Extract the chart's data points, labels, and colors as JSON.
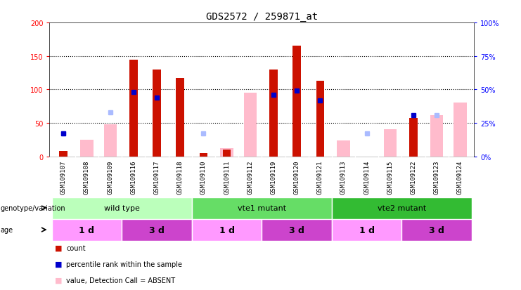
{
  "title": "GDS2572 / 259871_at",
  "samples": [
    "GSM109107",
    "GSM109108",
    "GSM109109",
    "GSM109116",
    "GSM109117",
    "GSM109118",
    "GSM109110",
    "GSM109111",
    "GSM109112",
    "GSM109119",
    "GSM109120",
    "GSM109121",
    "GSM109113",
    "GSM109114",
    "GSM109115",
    "GSM109122",
    "GSM109123",
    "GSM109124"
  ],
  "count": [
    8,
    0,
    0,
    144,
    130,
    117,
    5,
    10,
    0,
    130,
    165,
    113,
    0,
    0,
    0,
    57,
    0,
    0
  ],
  "percentile_rank": [
    17,
    0,
    0,
    48,
    44,
    0,
    0,
    0,
    0,
    46,
    49,
    42,
    0,
    0,
    0,
    31,
    0,
    0
  ],
  "value_absent": [
    0,
    25,
    48,
    0,
    0,
    0,
    0,
    12,
    95,
    0,
    0,
    0,
    24,
    0,
    40,
    0,
    62,
    80
  ],
  "rank_absent": [
    17,
    0,
    33,
    0,
    0,
    0,
    17,
    0,
    0,
    0,
    0,
    0,
    0,
    17,
    0,
    0,
    31,
    0
  ],
  "ylim_left": [
    0,
    200
  ],
  "ylim_right": [
    0,
    100
  ],
  "yticks_left": [
    0,
    50,
    100,
    150,
    200
  ],
  "yticks_right": [
    0,
    25,
    50,
    75,
    100
  ],
  "ytick_labels_left": [
    "0",
    "50",
    "100",
    "150",
    "200"
  ],
  "ytick_labels_right": [
    "0%",
    "25%",
    "50%",
    "75%",
    "100%"
  ],
  "genotype_groups": [
    {
      "label": "wild type",
      "start": 0,
      "end": 6,
      "color": "#bbffbb"
    },
    {
      "label": "vte1 mutant",
      "start": 6,
      "end": 12,
      "color": "#66dd66"
    },
    {
      "label": "vte2 mutant",
      "start": 12,
      "end": 18,
      "color": "#33bb33"
    }
  ],
  "age_groups": [
    {
      "label": "1 d",
      "start": 0,
      "end": 3,
      "color": "#ff99ff"
    },
    {
      "label": "3 d",
      "start": 3,
      "end": 6,
      "color": "#cc44cc"
    },
    {
      "label": "1 d",
      "start": 6,
      "end": 9,
      "color": "#ff99ff"
    },
    {
      "label": "3 d",
      "start": 9,
      "end": 12,
      "color": "#cc44cc"
    },
    {
      "label": "1 d",
      "start": 12,
      "end": 15,
      "color": "#ff99ff"
    },
    {
      "label": "3 d",
      "start": 15,
      "end": 18,
      "color": "#cc44cc"
    }
  ],
  "count_color": "#cc1100",
  "percentile_color": "#0000cc",
  "value_absent_color": "#ffbbcc",
  "rank_absent_color": "#aabbff",
  "xtick_bg": "#cccccc",
  "plot_bg": "#ffffff",
  "tick_fontsize": 7,
  "sample_fontsize": 6.5,
  "title_fontsize": 10
}
